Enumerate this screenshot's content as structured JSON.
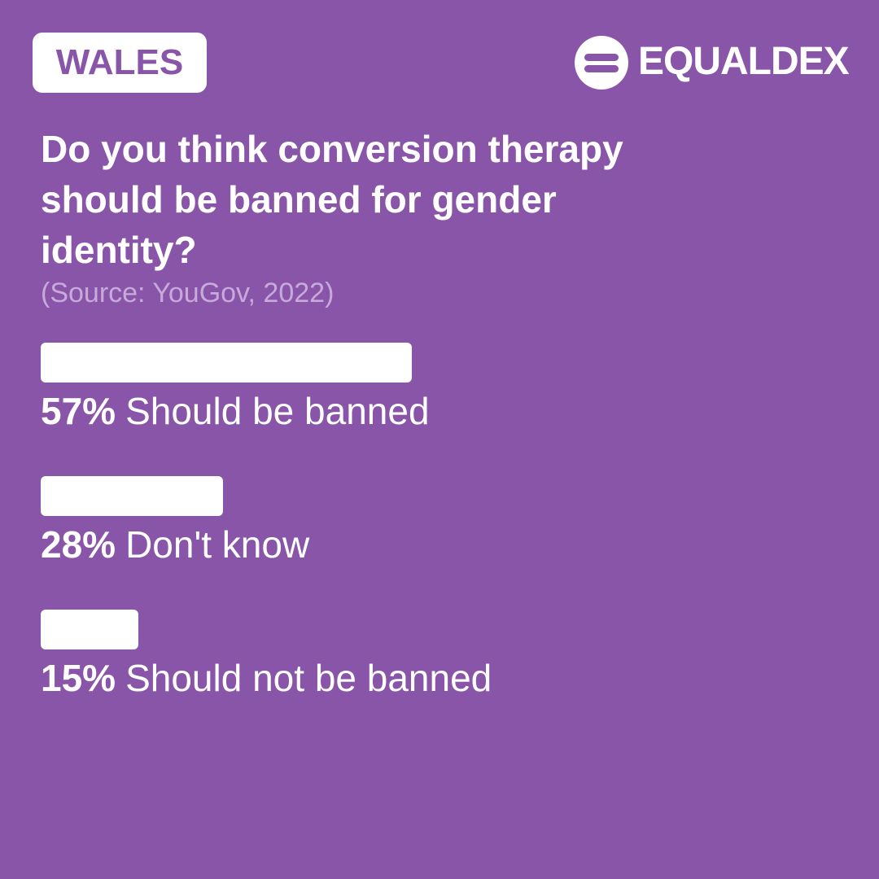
{
  "header": {
    "region": "WALES",
    "brand": "EQUALDEX"
  },
  "chart_data": {
    "type": "bar",
    "orientation": "horizontal",
    "title": "Do you think conversion therapy should be banned for gender identity?",
    "subtitle": "(Source: YouGov, 2022)",
    "categories": [
      "Should be banned",
      "Don't know",
      "Should not be banned"
    ],
    "values": [
      57,
      28,
      15
    ],
    "value_labels": [
      "57%",
      "28%",
      "15%"
    ],
    "color": "#ffffff"
  }
}
